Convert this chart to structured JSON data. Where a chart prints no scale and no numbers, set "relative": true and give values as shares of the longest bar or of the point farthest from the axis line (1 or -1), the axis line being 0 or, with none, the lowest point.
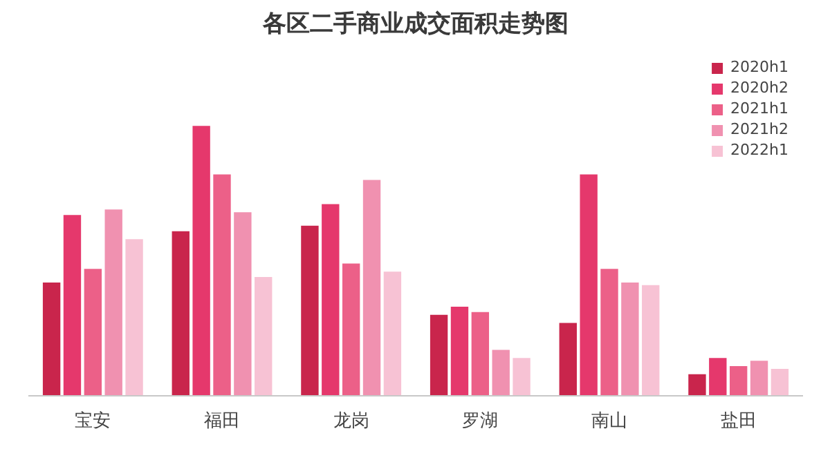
{
  "chart_data": {
    "type": "bar",
    "title": "各区二手商业成交面积走势图",
    "relative": true,
    "legend": "top right",
    "grid": false,
    "categories": [
      "宝安",
      "福田",
      "龙岗",
      "罗湖",
      "南山",
      "盐田"
    ],
    "series": [
      {
        "name": "2020h1",
        "color": "#c9254c",
        "values": [
          0.42,
          0.61,
          0.63,
          0.3,
          0.27,
          0.08
        ]
      },
      {
        "name": "2020h2",
        "color": "#e5386c",
        "values": [
          0.67,
          1,
          0.71,
          0.33,
          0.82,
          0.14
        ]
      },
      {
        "name": "2021h1",
        "color": "#ec6088",
        "values": [
          0.47,
          0.82,
          0.49,
          0.31,
          0.47,
          0.11
        ]
      },
      {
        "name": "2021h2",
        "color": "#f091b0",
        "values": [
          0.69,
          0.68,
          0.8,
          0.17,
          0.42,
          0.13
        ]
      },
      {
        "name": "2022h1",
        "color": "#f7c2d4",
        "values": [
          0.58,
          0.44,
          0.46,
          0.14,
          0.41,
          0.1
        ]
      }
    ]
  }
}
